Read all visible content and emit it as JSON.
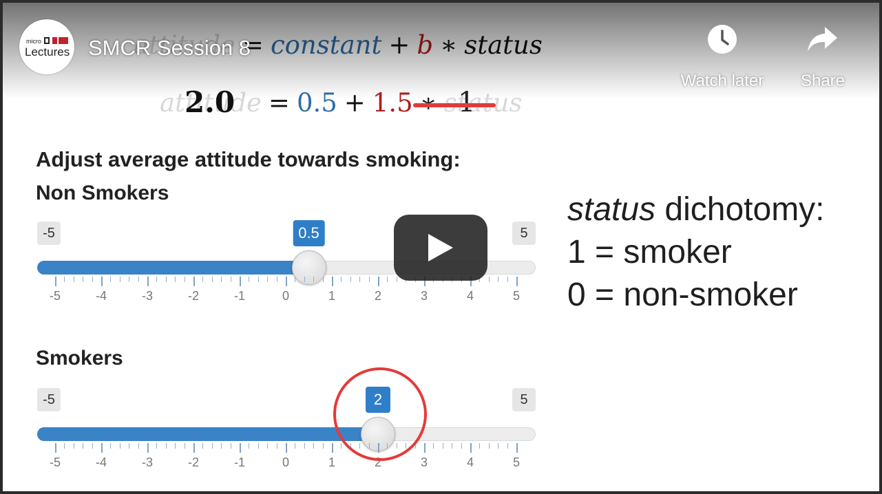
{
  "video": {
    "title": "SMCR Session 8",
    "channel_logo": {
      "small_text": "micro",
      "main_text": "Lectures"
    },
    "actions": {
      "watch_later": "Watch later",
      "share": "Share"
    },
    "play_icon": "play-icon",
    "watch_later_icon": "clock-icon",
    "share_icon": "share-arrow-icon"
  },
  "formula": {
    "line1": {
      "lhs": "attitude",
      "eq": "=",
      "constant": "constant",
      "plus": "+",
      "b": "b",
      "times": "∗",
      "status": "status"
    },
    "line2": {
      "value": "2.0",
      "lhs": "attitude",
      "eq": "=",
      "constant_value": "0.5",
      "plus": "+",
      "b_value": "1.5",
      "times": "∗",
      "status": "status",
      "status_value": "1"
    }
  },
  "controls": {
    "heading": "Adjust average attitude towards smoking:",
    "non_smokers": {
      "label": "Non Smokers",
      "min": -5,
      "max": 5,
      "min_label": "-5",
      "max_label": "5",
      "value": 0.5,
      "value_label": "0.5",
      "tick_labels": [
        "-5",
        "-4",
        "-3",
        "-2",
        "-1",
        "0",
        "1",
        "2",
        "3",
        "4",
        "5"
      ]
    },
    "smokers": {
      "label": "Smokers",
      "min": -5,
      "max": 5,
      "min_label": "-5",
      "max_label": "5",
      "value": 2,
      "value_label": "2",
      "tick_labels": [
        "-5",
        "-4",
        "-3",
        "-2",
        "-1",
        "0",
        "1",
        "2",
        "3",
        "4",
        "5"
      ]
    }
  },
  "legend": {
    "status_word": "status",
    "dichotomy": "dichotomy:",
    "line2": "1 = smoker",
    "line3": "0 = non-smoker"
  },
  "colors": {
    "accent_blue": "#2f7ec8",
    "formula_blue": "#2e6da8",
    "formula_red": "#b31b1b",
    "highlight_red": "#e43a3a"
  }
}
